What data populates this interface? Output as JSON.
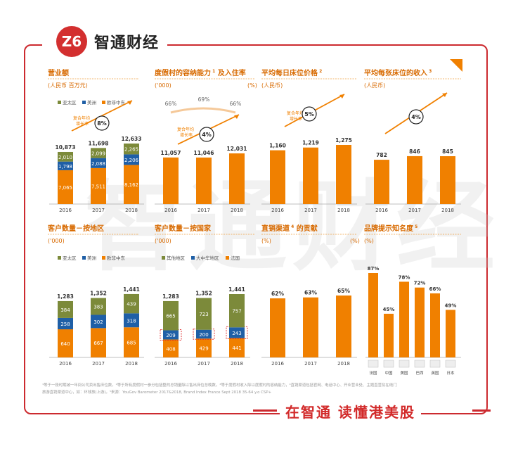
{
  "header": {
    "logo_mark": "Z6",
    "brand": "智通财经"
  },
  "footer": {
    "slogan": "在智通 读懂港美股"
  },
  "watermark": "智通财经",
  "colors": {
    "orange": "#f08000",
    "green": "#7c8a3a",
    "blue": "#1f5fa6",
    "title": "#d86a00"
  },
  "footnote": {
    "line1": "¹等于一段时期减一年间公司卖出售床位数。²等于所有度假村一参分包括整的总销量除以售出床位总晚数。³等于度假村收入除以度假村的容纳能力，⁴直销渠道包括官网、电话中心、开业营业处、主题直营及在线门",
    "line2": "旅游直销渠道中心，如：环球旅(上游)。⁵来源：YouGov Barometer 2017&2018, Brand Index France Sept 2018 35-64 y.o CSP+"
  },
  "chart_data": [
    {
      "type": "bar",
      "title": "营业额",
      "unit": "(人民币 百万元)",
      "categories": [
        "2016",
        "2017",
        "2018"
      ],
      "legend": [
        "亚太区",
        "美洲",
        "欧非中东"
      ],
      "series": [
        {
          "name": "欧非中东",
          "values": [
            7065,
            7511,
            8162
          ]
        },
        {
          "name": "美洲",
          "values": [
            1798,
            2088,
            2206
          ]
        },
        {
          "name": "亚太区",
          "values": [
            2010,
            2099,
            2265
          ]
        }
      ],
      "totals": [
        "10,873",
        "11,698",
        "12,633"
      ],
      "labels": [
        [
          "7,065",
          "1,798",
          "2,010"
        ],
        [
          "7,511",
          "2,088",
          "2,099"
        ],
        [
          "8,162",
          "2,206",
          "2,265"
        ]
      ],
      "annotation": "复合年均增长率",
      "cagr": "8%"
    },
    {
      "type": "bar",
      "title": "度假村的容纳能力",
      "title_sup": "1",
      "title_tail": "及入住率",
      "unit_left": "('000)",
      "unit_right": "(%)",
      "categories": [
        "2016",
        "2017",
        "2018"
      ],
      "values": [
        11057,
        11046,
        12031
      ],
      "labels": [
        "11,057",
        "11,046",
        "12,031"
      ],
      "occupancy": [
        "66%",
        "69%",
        "66%"
      ],
      "annotation": "复合年均增长率",
      "cagr": "4%"
    },
    {
      "type": "bar",
      "title": "平均每日床位价格",
      "title_sup": "2",
      "unit": "(人民币)",
      "categories": [
        "2016",
        "2017",
        "2018"
      ],
      "values": [
        1160,
        1219,
        1275
      ],
      "labels": [
        "1,160",
        "1,219",
        "1,275"
      ],
      "annotation": "复合年均增长率",
      "cagr": "5%"
    },
    {
      "type": "bar",
      "title": "平均每张床位的收入",
      "title_sup": "3",
      "unit": "(人民币)",
      "categories": [
        "2016",
        "2017",
        "2018"
      ],
      "values": [
        782,
        846,
        845
      ],
      "labels": [
        "782",
        "846",
        "845"
      ],
      "cagr": "4%"
    },
    {
      "type": "bar",
      "title": "客户数量－按地区",
      "unit": "('000)",
      "categories": [
        "2016",
        "2017",
        "2018"
      ],
      "legend": [
        "亚太区",
        "美洲",
        "欧非中东"
      ],
      "series": [
        {
          "name": "欧非中东",
          "values": [
            640,
            667,
            685
          ]
        },
        {
          "name": "美洲",
          "values": [
            258,
            302,
            318
          ]
        },
        {
          "name": "亚太区",
          "values": [
            384,
            383,
            439
          ]
        }
      ],
      "totals": [
        "1,283",
        "1,352",
        "1,441"
      ],
      "labels": [
        [
          "640",
          "258",
          "384"
        ],
        [
          "667",
          "302",
          "383"
        ],
        [
          "685",
          "318",
          "439"
        ]
      ]
    },
    {
      "type": "bar",
      "title": "客户数量－按国家",
      "unit": "('000)",
      "categories": [
        "2016",
        "2017",
        "2018"
      ],
      "legend": [
        "其他地区",
        "大中华地区",
        "法国"
      ],
      "series": [
        {
          "name": "法国",
          "values": [
            408,
            429,
            441
          ]
        },
        {
          "name": "大中华地区",
          "values": [
            209,
            200,
            243
          ]
        },
        {
          "name": "其他地区",
          "values": [
            665,
            723,
            757
          ]
        }
      ],
      "totals": [
        "1,283",
        "1,352",
        "1,441"
      ],
      "labels": [
        [
          "408",
          "209",
          "665"
        ],
        [
          "429",
          "200",
          "723"
        ],
        [
          "441",
          "243",
          "757"
        ]
      ]
    },
    {
      "type": "bar",
      "title": "直销渠道",
      "title_sup": "4",
      "title_tail": "的贡献",
      "unit_left": "(%)",
      "unit_right": "(%)",
      "categories": [
        "2016",
        "2017",
        "2018"
      ],
      "values": [
        62,
        63,
        65
      ],
      "labels": [
        "62%",
        "63%",
        "65%"
      ]
    },
    {
      "type": "bar",
      "title": "品牌提示知名度",
      "title_sup": "5",
      "unit": "(%)",
      "categories": [
        "法国",
        "中国",
        "美国",
        "巴西",
        "英国",
        "日本"
      ],
      "values": [
        87,
        45,
        78,
        72,
        66,
        49
      ],
      "labels": [
        "87%",
        "45%",
        "78%",
        "72%",
        "66%",
        "49%"
      ]
    }
  ]
}
